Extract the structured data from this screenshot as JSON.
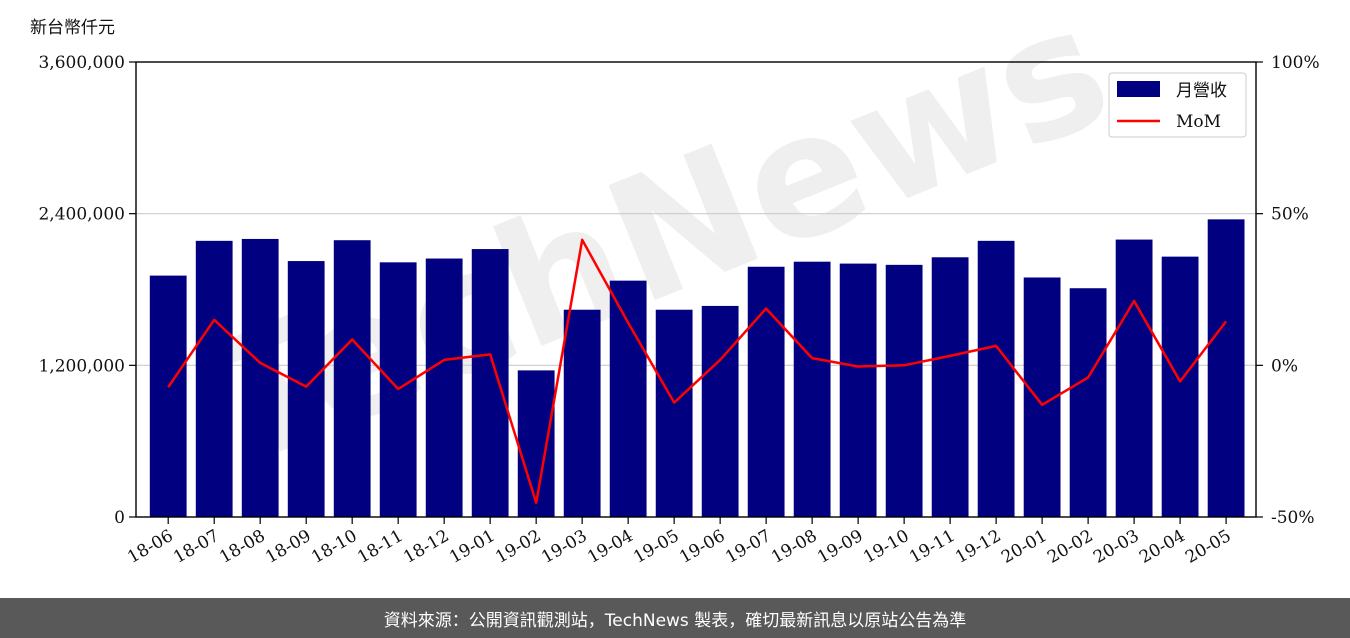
{
  "unit_label": "新台幣仟元",
  "footer_text": "資料來源：公開資訊觀測站，TechNews 製表，確切最新訊息以原站公告為準",
  "watermark": "TechNews",
  "colors": {
    "bar": "#000080",
    "line": "#ff0000",
    "grid": "#cccccc",
    "footer_bg": "#595959"
  },
  "chart_data": {
    "type": "bar",
    "categories": [
      "18-06",
      "18-07",
      "18-08",
      "18-09",
      "18-10",
      "18-11",
      "18-12",
      "19-01",
      "19-02",
      "19-03",
      "19-04",
      "19-05",
      "19-06",
      "19-07",
      "19-08",
      "19-09",
      "19-10",
      "19-11",
      "19-12",
      "20-01",
      "20-02",
      "20-03",
      "20-04",
      "20-05"
    ],
    "series": [
      {
        "name": "月營收",
        "type": "bar",
        "axis": "left",
        "values": [
          1910000,
          2185000,
          2200000,
          2025000,
          2190000,
          2015000,
          2045000,
          2120000,
          1160000,
          1640000,
          1870000,
          1640000,
          1670000,
          1980000,
          2020000,
          2005000,
          1995000,
          2055000,
          2185000,
          1895000,
          1810000,
          2195000,
          2060000,
          2355000
        ]
      },
      {
        "name": "MoM",
        "type": "line",
        "axis": "right",
        "values": [
          -7.2,
          15.0,
          0.8,
          -7.0,
          8.5,
          -7.8,
          1.8,
          3.6,
          -45.3,
          41.4,
          14.0,
          -12.3,
          1.8,
          18.7,
          2.4,
          -0.4,
          0.0,
          3.1,
          6.4,
          -13.0,
          -4.0,
          21.2,
          -5.3,
          14.5
        ]
      }
    ],
    "left_axis": {
      "min": 0,
      "max": 3600000,
      "ticks": [
        0,
        1200000,
        2400000,
        3600000
      ],
      "tick_labels": [
        "0",
        "1,200,000",
        "2,400,000",
        "3,600,000"
      ]
    },
    "right_axis": {
      "min": -50,
      "max": 100,
      "ticks": [
        -50,
        0,
        50,
        100
      ],
      "tick_labels": [
        "-50%",
        "0%",
        "50%",
        "100%"
      ]
    },
    "grid": "horizontal",
    "legend_position": "top-right"
  }
}
